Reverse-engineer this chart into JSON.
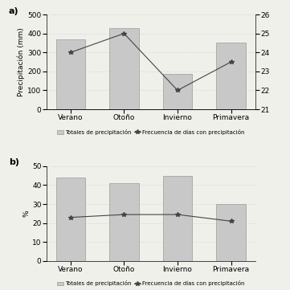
{
  "categories": [
    "Verano",
    "Otoño",
    "Invierno",
    "Primavera"
  ],
  "a_bars": [
    370,
    430,
    185,
    350
  ],
  "a_line": [
    24.0,
    25.0,
    22.0,
    23.5
  ],
  "a_ylabel": "Precipitación (mm)",
  "a_ylim": [
    0,
    500
  ],
  "a_yticks": [
    0,
    100,
    200,
    300,
    400,
    500
  ],
  "a_y2lim": [
    21,
    26
  ],
  "a_y2ticks": [
    21,
    22,
    23,
    24,
    25,
    26
  ],
  "b_bars": [
    44,
    41,
    45,
    30
  ],
  "b_line": [
    23.0,
    24.5,
    24.5,
    21.0
  ],
  "b_ylabel": "%",
  "b_ylim": [
    0,
    50
  ],
  "b_yticks": [
    0,
    10,
    20,
    30,
    40,
    50
  ],
  "bar_color": "#c8c8c8",
  "bar_edgecolor": "#999999",
  "line_color": "#444444",
  "line_marker": "*",
  "grid_color": "#d0d0d0",
  "legend_bar_label": "Totales de precipitación",
  "legend_line_label": "Frecuencia de días con precipitación",
  "label_a": "a)",
  "label_b": "b)",
  "bg_color": "#f0f0eb",
  "tick_fontsize": 6.5,
  "ylabel_fontsize": 6.5,
  "xlabel_fontsize": 6.5,
  "legend_fontsize": 5.0
}
